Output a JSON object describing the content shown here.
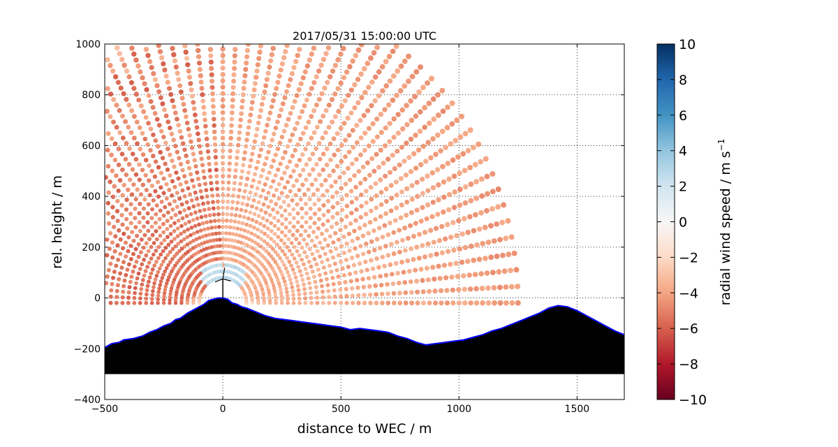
{
  "chart_data": {
    "type": "scatter",
    "title": "2017/05/31 15:00:00 UTC",
    "xlabel": "distance to WEC / m",
    "ylabel": "rel. height / m",
    "xlim": [
      -500,
      1700
    ],
    "ylim": [
      -400,
      1000
    ],
    "xticks": [
      -500,
      0,
      500,
      1000,
      1500
    ],
    "xtick_labels": [
      "−500",
      "0",
      "500",
      "1000",
      "1500"
    ],
    "yticks": [
      -400,
      -200,
      0,
      200,
      400,
      600,
      800,
      1000
    ],
    "ytick_labels": [
      "−400",
      "−200",
      "0",
      "200",
      "400",
      "600",
      "800",
      "1000"
    ],
    "grid": true,
    "scan": {
      "origin": [
        0,
        0
      ],
      "range_gates_m": {
        "start": 100,
        "end": 1270,
        "step": 25
      },
      "beam_elevation_deg": {
        "start": 0,
        "end": 180,
        "step": 3
      },
      "max_height_m": 1000,
      "max_x_m": 1280,
      "typical_radial_speed": -3.5,
      "upper_left_speed": -5.5,
      "near_ground_speed": -0.5,
      "near_turbine_speed": 2.5
    },
    "terrain": {
      "fill": "#000000",
      "outline": "#0000ff",
      "base_m": -300,
      "profile": [
        [
          -500,
          -195
        ],
        [
          -470,
          -180
        ],
        [
          -440,
          -175
        ],
        [
          -420,
          -165
        ],
        [
          -380,
          -160
        ],
        [
          -340,
          -150
        ],
        [
          -310,
          -135
        ],
        [
          -280,
          -125
        ],
        [
          -250,
          -110
        ],
        [
          -220,
          -100
        ],
        [
          -200,
          -85
        ],
        [
          -180,
          -80
        ],
        [
          -150,
          -60
        ],
        [
          -120,
          -45
        ],
        [
          -100,
          -35
        ],
        [
          -80,
          -25
        ],
        [
          -60,
          -10
        ],
        [
          -40,
          -5
        ],
        [
          -20,
          0
        ],
        [
          0,
          0
        ],
        [
          20,
          -5
        ],
        [
          40,
          -20
        ],
        [
          60,
          -25
        ],
        [
          80,
          -35
        ],
        [
          100,
          -40
        ],
        [
          140,
          -55
        ],
        [
          180,
          -70
        ],
        [
          220,
          -80
        ],
        [
          260,
          -85
        ],
        [
          300,
          -90
        ],
        [
          340,
          -95
        ],
        [
          380,
          -100
        ],
        [
          420,
          -105
        ],
        [
          460,
          -110
        ],
        [
          500,
          -115
        ],
        [
          540,
          -125
        ],
        [
          580,
          -120
        ],
        [
          620,
          -125
        ],
        [
          660,
          -130
        ],
        [
          700,
          -135
        ],
        [
          740,
          -150
        ],
        [
          780,
          -160
        ],
        [
          820,
          -175
        ],
        [
          860,
          -185
        ],
        [
          900,
          -180
        ],
        [
          940,
          -175
        ],
        [
          980,
          -170
        ],
        [
          1020,
          -165
        ],
        [
          1060,
          -155
        ],
        [
          1100,
          -145
        ],
        [
          1140,
          -130
        ],
        [
          1180,
          -120
        ],
        [
          1220,
          -105
        ],
        [
          1260,
          -90
        ],
        [
          1300,
          -75
        ],
        [
          1340,
          -60
        ],
        [
          1380,
          -40
        ],
        [
          1420,
          -30
        ],
        [
          1460,
          -35
        ],
        [
          1500,
          -50
        ],
        [
          1540,
          -70
        ],
        [
          1580,
          -90
        ],
        [
          1620,
          -110
        ],
        [
          1660,
          -130
        ],
        [
          1700,
          -145
        ]
      ]
    },
    "turbine": {
      "x": 0,
      "hub_height_m": 75,
      "blade_length_m": 40,
      "color": "#000000"
    },
    "colorbar": {
      "label": "radial wind speed / m s",
      "label_superscript": "−1",
      "range": [
        -10,
        10
      ],
      "ticks": [
        10,
        8,
        6,
        4,
        2,
        0,
        -2,
        -4,
        -6,
        -8,
        -10
      ],
      "tick_labels": [
        "10",
        "8",
        "6",
        "4",
        "2",
        "0",
        "−2",
        "−4",
        "−6",
        "−8",
        "−10"
      ],
      "colormap": "RdBu",
      "stops": [
        "#67001f",
        "#b2182b",
        "#d6604d",
        "#f4a582",
        "#fddbc7",
        "#f7f7f7",
        "#d1e5f0",
        "#92c5de",
        "#4393c3",
        "#2166ac",
        "#053061"
      ]
    }
  }
}
